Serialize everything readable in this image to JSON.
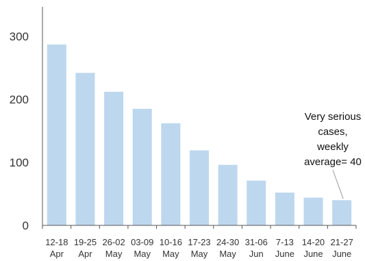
{
  "chart_data": {
    "type": "bar",
    "categories": [
      [
        "12-18",
        "Apr"
      ],
      [
        "19-25",
        "Apr"
      ],
      [
        "26-02",
        "May"
      ],
      [
        "03-09",
        "May"
      ],
      [
        "10-16",
        "May"
      ],
      [
        "17-23",
        "May"
      ],
      [
        "24-30",
        "May"
      ],
      [
        "31-06",
        "Jun"
      ],
      [
        "7-13",
        "June"
      ],
      [
        "14-20",
        "June"
      ],
      [
        "21-27",
        "June"
      ]
    ],
    "values": [
      287,
      242,
      212,
      185,
      162,
      119,
      96,
      71,
      52,
      44,
      40
    ],
    "ylim": [
      0,
      340
    ],
    "yticks": [
      0,
      100,
      200,
      300
    ],
    "grid": false,
    "bar_color": "#bdd7ee",
    "axis_color": "#555555",
    "annotation": {
      "lines": [
        "Very serious",
        "cases,",
        "weekly",
        "average= 40"
      ],
      "target_index": 10
    }
  }
}
